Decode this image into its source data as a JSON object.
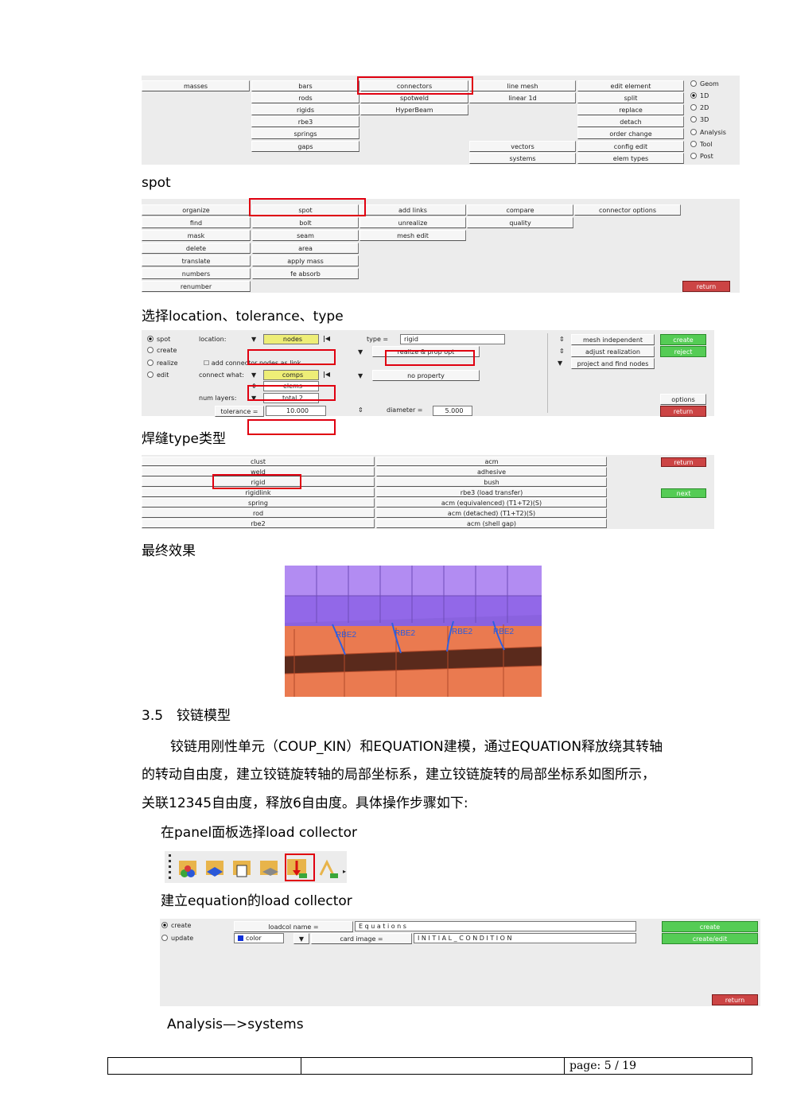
{
  "panel1": {
    "col1": [
      "masses"
    ],
    "col2": [
      "bars",
      "rods",
      "rigids",
      "rbe3",
      "springs",
      "gaps"
    ],
    "col3": [
      "connectors",
      "spotweld",
      "HyperBeam"
    ],
    "col4": [
      "line mesh",
      "linear 1d",
      "vectors",
      "systems"
    ],
    "col5": [
      "edit element",
      "split",
      "replace",
      "detach",
      "order change",
      "config edit",
      "elem types"
    ],
    "radios": [
      "Geom",
      "1D",
      "2D",
      "3D",
      "Analysis",
      "Tool",
      "Post"
    ]
  },
  "caption_spot": "spot",
  "panel2": {
    "col1": [
      "organize",
      "find",
      "mask",
      "delete",
      "translate",
      "numbers",
      "renumber"
    ],
    "col2": [
      "spot",
      "bolt",
      "seam",
      "area",
      "apply mass",
      "fe absorb"
    ],
    "col3": [
      "add links",
      "unrealize",
      "mesh edit"
    ],
    "col4": [
      "compare",
      "quality"
    ],
    "col5": [
      "connector options"
    ],
    "return": "return"
  },
  "caption_location": "选择location、tolerance、type",
  "panel3": {
    "radios": [
      "spot",
      "create",
      "realize",
      "edit"
    ],
    "location_label": "location:",
    "location_value": "nodes",
    "add_comps": "add connector nodes as link",
    "connect_what": "connect what:",
    "comps": "comps",
    "elems": "elems",
    "num_layers_label": "num layers:",
    "total": "total 2",
    "tolerance_label": "tolerance =",
    "tolerance_value": "10.000",
    "type_label": "type =",
    "type_value": "rigid",
    "realize_opt": "realize & prop opt",
    "no_property": "no property",
    "diameter_label": "diameter =",
    "diameter_value": "5.000",
    "mesh_independent": "mesh independent",
    "adjust_realization": "adjust realization",
    "project_find": "project and find nodes",
    "create": "create",
    "reject": "reject",
    "options": "options",
    "return": "return"
  },
  "caption_weld": "焊缝type类型",
  "panel4": {
    "left": [
      "clust",
      "weld",
      "rigid",
      "rigidlink",
      "spring",
      "rod",
      "rbe2"
    ],
    "right": [
      "acm",
      "adhesive",
      "bush",
      "rbe3 (load transfer)",
      "acm (equivalenced) (T1+T2)(S)",
      "acm (detached) (T1+T2)(S)",
      "acm (shell gap)"
    ],
    "return": "return",
    "next": "next"
  },
  "caption_final": "最终效果",
  "figure_labels": [
    "RBE2",
    "RBE2",
    "RBE2",
    "RBE2"
  ],
  "section_title": "3.5　铰链模型",
  "body_lines": [
    "铰链用刚性单元（COUP_KIN）和EQUATION建模，通过EQUATION释放绕其转轴",
    "的转动自由度，建立铰链旋转轴的局部坐标系，建立铰链旋转的局部坐标系如图所示，",
    "关联12345自由度，释放6自由度。具体操作步骤如下:"
  ],
  "caption_panel": "在panel面板选择load collector",
  "caption_equation": "建立equation的load collector",
  "panel5": {
    "create": "create",
    "update": "update",
    "loadcol_name_label": "loadcol name =",
    "loadcol_name_value": "E q u a t i o n s",
    "color_label": "color",
    "card_image_label": "card image =",
    "card_image_value": "I N I T I A L _ C O N D I T I O N",
    "btn_create": "create",
    "btn_create_edit": "create/edit",
    "return": "return"
  },
  "caption_analysis": "Analysis—>systems",
  "footer": {
    "page": "page: 5 / 19"
  },
  "colors": {
    "highlight": "#e00010",
    "green": "#55cc55",
    "red": "#cc4444",
    "yellow": "#eeee77"
  }
}
